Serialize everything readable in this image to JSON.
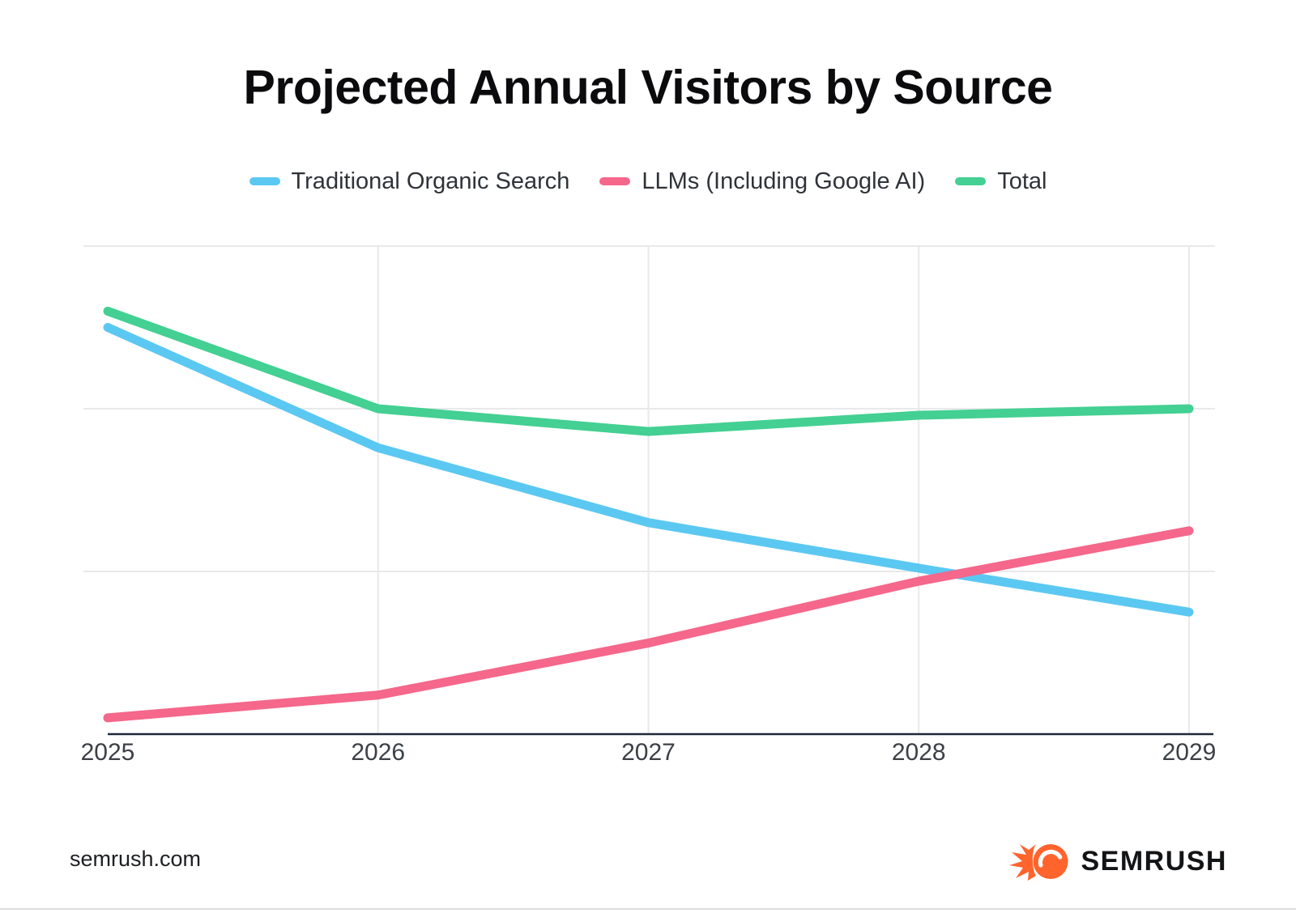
{
  "chart_data": {
    "type": "line",
    "title": "Projected Annual Visitors by Source",
    "categories": [
      "2025",
      "2026",
      "2027",
      "2028",
      "2029"
    ],
    "series": [
      {
        "name": "Traditional Organic Search",
        "color": "#5BC8F2",
        "values": [
          250,
          176,
          130,
          102,
          75
        ]
      },
      {
        "name": "LLMs (Including Google AI)",
        "color": "#F5678B",
        "values": [
          10,
          24,
          56,
          94,
          125
        ]
      },
      {
        "name": "Total",
        "color": "#43D092",
        "values": [
          260,
          200,
          186,
          196,
          200
        ]
      }
    ],
    "xlabel": "",
    "ylabel": "",
    "ylim": [
      0,
      300
    ],
    "y_gridline_values": [
      100,
      200,
      300
    ],
    "y_axis_labels": [],
    "grid": true,
    "legend_position": "top",
    "axis_color": "#1F2838",
    "grid_color": "#E9E9EC",
    "tick_label_color": "#3C4046"
  },
  "footer": {
    "site_label": "semrush.com",
    "logo_text": "SEMRUSH",
    "logo_color": "#FF642D"
  }
}
